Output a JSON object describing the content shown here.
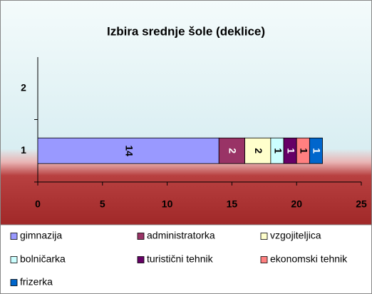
{
  "chart_data": {
    "type": "stacked_barh",
    "title": "Izbira srednje šole (deklice)",
    "categories": [
      "1",
      "2"
    ],
    "series": [
      {
        "name": "gimnazija",
        "color": "#9999ff",
        "values": [
          14,
          null
        ]
      },
      {
        "name": "administratorka",
        "color": "#993366",
        "values": [
          2,
          null
        ]
      },
      {
        "name": "vzgojiteljica",
        "color": "#ffffcc",
        "values": [
          2,
          null
        ]
      },
      {
        "name": "bolničarka",
        "color": "#ccffff",
        "values": [
          1,
          null
        ]
      },
      {
        "name": "turistični tehnik",
        "color": "#660066",
        "values": [
          1,
          null
        ]
      },
      {
        "name": "ekonomski tehnik",
        "color": "#ff8080",
        "values": [
          1,
          null
        ]
      },
      {
        "name": "frizerka",
        "color": "#0066cc",
        "values": [
          1,
          null
        ]
      }
    ],
    "xlim": [
      0,
      25
    ],
    "xticks": [
      0,
      5,
      10,
      15,
      20,
      25
    ],
    "grid": false,
    "legend": "bottom"
  }
}
